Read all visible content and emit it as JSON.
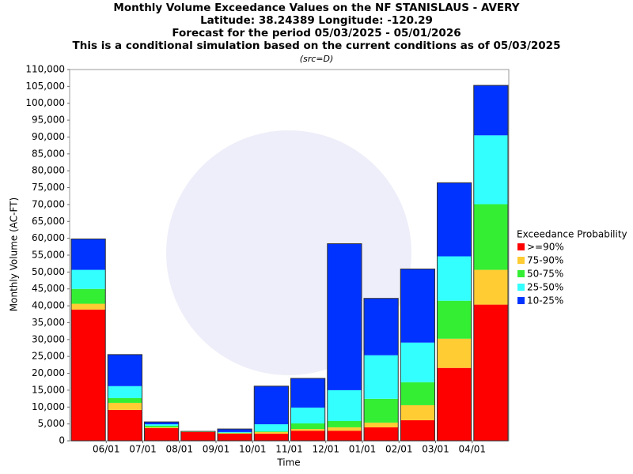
{
  "chart_data": {
    "type": "stacked_bar",
    "title": [
      "Monthly Volume Exceedance Values on the NF STANISLAUS - AVERY",
      "Latitude: 38.24389 Longitude: -120.29",
      "Forecast for the period 05/03/2025 - 05/01/2026",
      "This is a conditional simulation based on the current conditions as of 05/03/2025"
    ],
    "subtitle": "(src=D)",
    "x_label": "Time",
    "y_label": "Monthly Volume (AC-FT)",
    "legend_title": "Exceedance Probability",
    "legend_position": "right",
    "grid": false,
    "categories": [
      null,
      "06/01",
      "07/01",
      "08/01",
      "09/01",
      "10/01",
      "11/01",
      "12/01",
      "01/01",
      "02/01",
      "03/01",
      "04/01"
    ],
    "series": [
      {
        "name": ">=90%",
        "color": "#ff0000",
        "values": [
          38900,
          9150,
          3750,
          2600,
          2100,
          2100,
          3000,
          3000,
          4000,
          6100,
          21600,
          40350
        ]
      },
      {
        "name": "75-90%",
        "color": "#ffcc33",
        "values": [
          1700,
          2100,
          250,
          50,
          150,
          500,
          500,
          1000,
          1400,
          4450,
          8650,
          10300
        ]
      },
      {
        "name": "50-75%",
        "color": "#33ee33",
        "values": [
          4400,
          1400,
          450,
          50,
          150,
          200,
          1650,
          1850,
          7050,
          6800,
          11250,
          19450
        ]
      },
      {
        "name": "25-50%",
        "color": "#33ffff",
        "values": [
          5650,
          3550,
          450,
          50,
          200,
          2100,
          4700,
          9150,
          12900,
          11750,
          13150,
          20400
        ]
      },
      {
        "name": "10-25%",
        "color": "#0033ff",
        "values": [
          9150,
          9350,
          700,
          50,
          900,
          11300,
          8650,
          43400,
          16850,
          21800,
          21800,
          14800
        ]
      }
    ],
    "ylim": [
      0,
      110000
    ],
    "yticks": [
      0,
      {
        "value": 5000,
        "label": "5,000"
      },
      {
        "value": 10000,
        "label": "10,000"
      },
      {
        "value": 15000,
        "label": "15,000"
      },
      {
        "value": 20000,
        "label": "20,000"
      },
      {
        "value": 25000,
        "label": "25,000"
      },
      {
        "value": 30000,
        "label": "30,000"
      },
      {
        "value": 35000,
        "label": "35,000"
      },
      {
        "value": 40000,
        "label": "40,000"
      },
      {
        "value": 45000,
        "label": "45,000"
      },
      {
        "value": 50000,
        "label": "50,000"
      },
      {
        "value": 55000,
        "label": "55,000"
      },
      {
        "value": 60000,
        "label": "60,000"
      },
      {
        "value": 65000,
        "label": "65,000"
      },
      {
        "value": 70000,
        "label": "70,000"
      },
      {
        "value": 75000,
        "label": "75,000"
      },
      {
        "value": 80000,
        "label": "80,000"
      },
      {
        "value": 85000,
        "label": "85,000"
      },
      {
        "value": 90000,
        "label": "90,000"
      },
      {
        "value": 95000,
        "label": "95,000"
      },
      {
        "value": 100000,
        "label": "100,000"
      },
      {
        "value": 105000,
        "label": "105,000"
      },
      {
        "value": 110000,
        "label": "110,000"
      }
    ]
  }
}
